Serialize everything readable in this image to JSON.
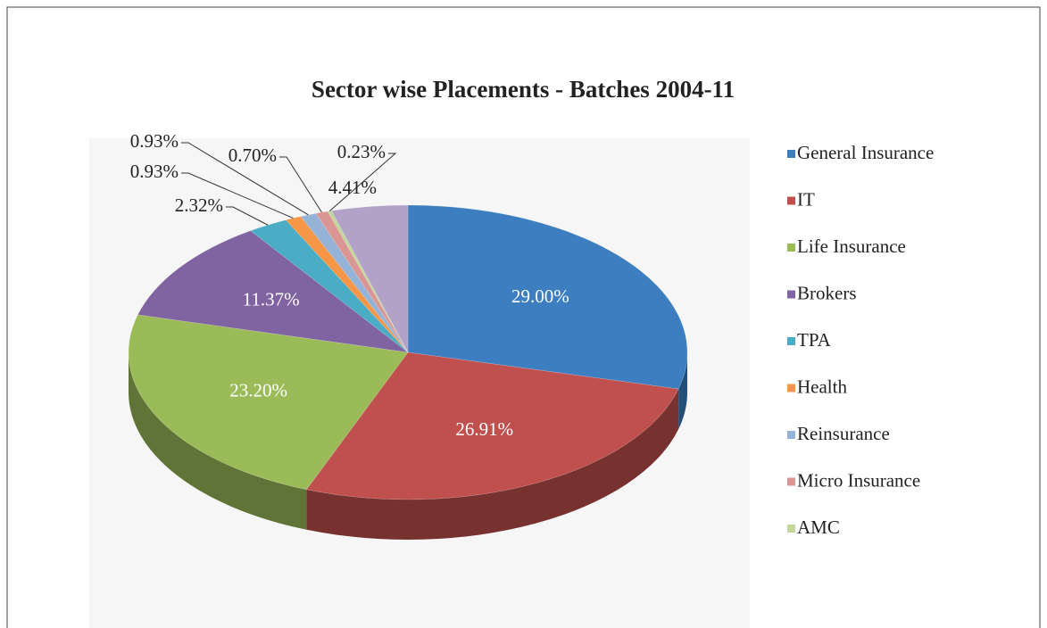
{
  "chart_data": {
    "type": "pie",
    "title": "Sector wise Placements - Batches 2004-11",
    "categories": [
      "General Insurance",
      "IT",
      "Life Insurance",
      "Brokers",
      "TPA",
      "Health",
      "Reinsurance",
      "Micro Insurance",
      "AMC",
      null
    ],
    "values": [
      29.0,
      26.91,
      23.2,
      11.37,
      2.32,
      0.93,
      0.93,
      0.7,
      0.23,
      4.41
    ],
    "value_labels": [
      "29.00%",
      "26.91%",
      "23.20%",
      "11.37%",
      "2.32%",
      "0.93%",
      "0.93%",
      "0.70%",
      "0.23%",
      "4.41%"
    ],
    "colors": [
      "#3c7ebf",
      "#c0504d",
      "#9bbb59",
      "#8064a2",
      "#4bacc6",
      "#f79646",
      "#95b3d7",
      "#d99694",
      "#c3d69b",
      "#b2a2c7"
    ],
    "legend": "right"
  }
}
